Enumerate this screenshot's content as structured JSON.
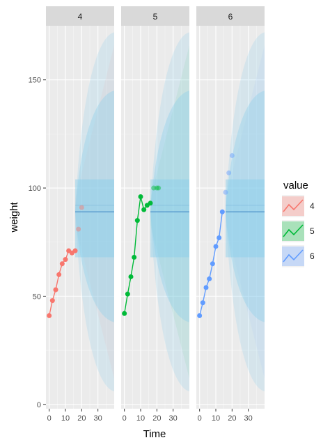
{
  "chart_data": {
    "type": "line",
    "facets": [
      "4",
      "5",
      "6"
    ],
    "xlabel": "Time",
    "ylabel": "weight",
    "xlim": [
      -2,
      40
    ],
    "ylim": [
      -2,
      175
    ],
    "x_ticks": [
      "0",
      "10",
      "20",
      "30"
    ],
    "y_ticks": [
      "0",
      "50",
      "100",
      "150"
    ],
    "grid": true,
    "legend": {
      "title": "value",
      "position": "right",
      "labels": [
        "4",
        "5",
        "6"
      ]
    },
    "colors": {
      "4": "#f8766d",
      "5": "#00ba38",
      "6": "#619cff",
      "forecast_band": "#87ceeb",
      "forecast_mean": "#4a90c8",
      "panel_bg": "#ebebeb",
      "strip_bg": "#d9d9d9"
    },
    "series": [
      {
        "name": "4",
        "x": [
          0,
          2,
          4,
          6,
          8,
          10,
          12,
          14,
          16
        ],
        "y": [
          41,
          48,
          53,
          60,
          65,
          67,
          71,
          70,
          71
        ],
        "holdout_x": [
          18,
          20
        ],
        "holdout_y": [
          81,
          91
        ],
        "forecast": {
          "x_start": 16,
          "mean": 89,
          "inner_low_end": 68,
          "inner_high_end": 115,
          "outer_low_end": 6,
          "outer_high_end": 172
        }
      },
      {
        "name": "5",
        "x": [
          0,
          2,
          4,
          6,
          8,
          10,
          12,
          14,
          16
        ],
        "y": [
          42,
          51,
          59,
          68,
          85,
          96,
          90,
          92,
          93
        ],
        "holdout_x": [
          18,
          20,
          21
        ],
        "holdout_y": [
          100,
          100,
          100
        ],
        "forecast": {
          "x_start": 16,
          "mean": 89,
          "inner_low_end": 68,
          "inner_high_end": 115,
          "outer_low_end": 6,
          "outer_high_end": 172
        }
      },
      {
        "name": "6",
        "x": [
          0,
          2,
          4,
          6,
          8,
          10,
          12,
          14
        ],
        "y": [
          41,
          47,
          54,
          58,
          65,
          73,
          77,
          89
        ],
        "holdout_x": [
          16,
          18,
          20
        ],
        "holdout_y": [
          98,
          107,
          115
        ],
        "forecast": {
          "x_start": 16,
          "mean": 89,
          "inner_low_end": 68,
          "inner_high_end": 115,
          "outer_low_end": 6,
          "outer_high_end": 172
        }
      }
    ]
  }
}
